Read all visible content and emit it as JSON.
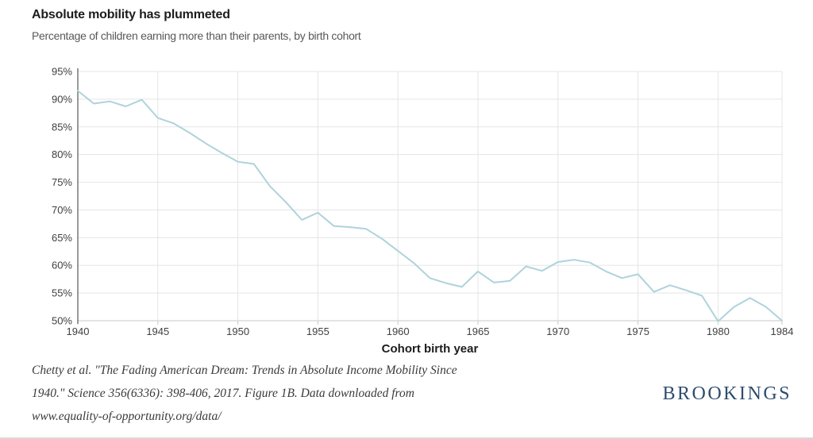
{
  "header": {
    "title": "Absolute mobility has plummeted",
    "subtitle": "Percentage of children earning more than their parents, by birth cohort"
  },
  "chart_data": {
    "type": "line",
    "title": "Absolute mobility has plummeted",
    "subtitle": "Percentage of children earning more than their parents, by birth cohort",
    "xlabel": "Cohort birth year",
    "ylabel": "",
    "unit": "%",
    "xlim": [
      1940,
      1984
    ],
    "ylim": [
      50,
      95
    ],
    "grid": true,
    "legend": "none",
    "x": [
      1940,
      1941,
      1942,
      1943,
      1944,
      1945,
      1946,
      1947,
      1948,
      1949,
      1950,
      1951,
      1952,
      1953,
      1954,
      1955,
      1956,
      1957,
      1958,
      1959,
      1960,
      1961,
      1962,
      1963,
      1964,
      1965,
      1966,
      1967,
      1968,
      1969,
      1970,
      1971,
      1972,
      1973,
      1974,
      1975,
      1976,
      1977,
      1978,
      1979,
      1980,
      1981,
      1982,
      1983,
      1984
    ],
    "values": [
      91.5,
      89.2,
      89.6,
      88.7,
      89.9,
      86.6,
      85.6,
      83.9,
      82.0,
      80.3,
      78.7,
      78.3,
      74.3,
      71.4,
      68.2,
      69.5,
      67.1,
      66.9,
      66.6,
      64.8,
      62.6,
      60.4,
      57.7,
      56.8,
      56.1,
      58.9,
      56.9,
      57.2,
      59.8,
      59.0,
      60.6,
      61.0,
      60.5,
      58.9,
      57.7,
      58.4,
      55.2,
      56.4,
      55.5,
      54.5,
      49.9,
      52.5,
      54.1,
      52.5,
      50.0
    ],
    "x_ticks": [
      1940,
      1945,
      1950,
      1955,
      1960,
      1965,
      1970,
      1975,
      1980,
      1984
    ],
    "x_tick_labels": [
      "1940",
      "1945",
      "1950",
      "1955",
      "1960",
      "1965",
      "1970",
      "1975",
      "1980",
      "1984"
    ],
    "y_ticks": [
      50,
      55,
      60,
      65,
      70,
      75,
      80,
      85,
      90,
      95
    ],
    "y_tick_labels": [
      "50%",
      "55%",
      "60%",
      "65%",
      "70%",
      "75%",
      "80%",
      "85%",
      "90%",
      "95%"
    ],
    "colors": {
      "line": "#aed3dc",
      "grid": "#e5e5e5",
      "baseline": "#c9c9c9",
      "axis": "#333333",
      "tick_text": "#3f3f3f",
      "axis_title": "#1c1c1c"
    }
  },
  "footer": {
    "source_lines": [
      "Chetty et al. \"The Fading American Dream: Trends in Absolute Income Mobility Since",
      "1940.\" Science 356(6336): 398-406, 2017. Figure 1B. Data downloaded from",
      "www.equality-of-opportunity.org/data/"
    ],
    "logo": "BROOKINGS"
  }
}
